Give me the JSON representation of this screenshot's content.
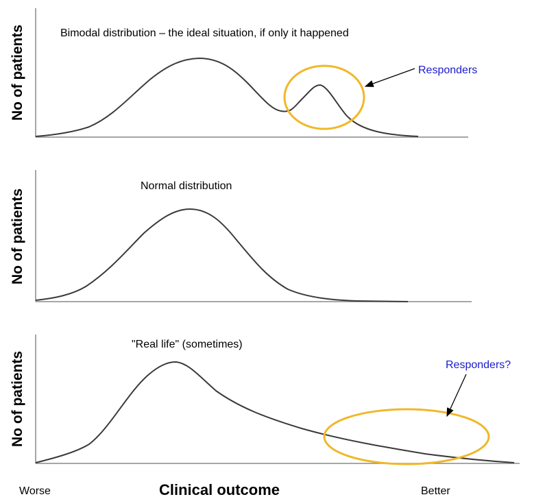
{
  "panels": [
    {
      "title": "Bimodal distribution – the ideal situation, if only it happened",
      "y_label": "No of patients",
      "annotation": "Responders"
    },
    {
      "title": "Normal distribution",
      "y_label": "No of patients"
    },
    {
      "title": "\"Real life\" (sometimes)",
      "y_label": "No of patients",
      "annotation": "Responders?"
    }
  ],
  "x_axis": {
    "left": "Worse",
    "label": "Clinical outcome",
    "right": "Better"
  }
}
